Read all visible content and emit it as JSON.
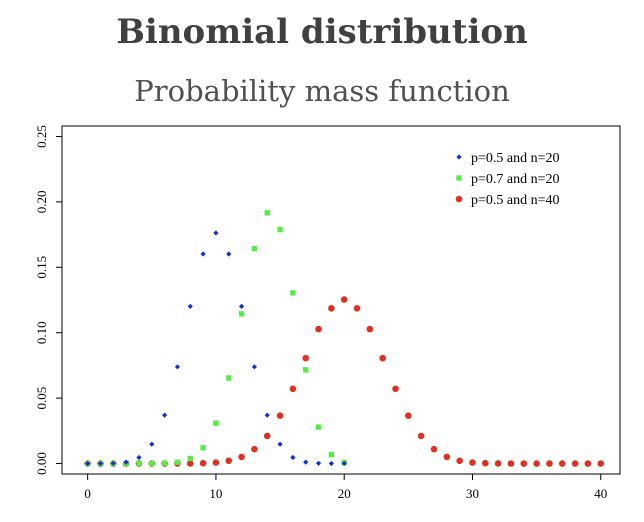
{
  "chart_data": {
    "type": "scatter",
    "title": "Binomial distribution",
    "subtitle": "Probability mass function",
    "xlabel": "",
    "ylabel": "",
    "xlim": [
      -2,
      41.5
    ],
    "ylim": [
      -0.008,
      0.258
    ],
    "x_ticks": [
      0,
      10,
      20,
      30,
      40
    ],
    "x_tick_labels": [
      "0",
      "10",
      "20",
      "30",
      "40"
    ],
    "y_ticks": [
      0,
      0.05,
      0.1,
      0.15,
      0.2,
      0.25
    ],
    "y_tick_labels": [
      "0.00",
      "0.05",
      "0.10",
      "0.15",
      "0.20",
      "0.25"
    ],
    "grid": false,
    "legend_position": "top-right",
    "series": [
      {
        "name": "p=0.5 and n=20",
        "color": "#1030d0",
        "marker": "diamond",
        "x": [
          0,
          1,
          2,
          3,
          4,
          5,
          6,
          7,
          8,
          9,
          10,
          11,
          12,
          13,
          14,
          15,
          16,
          17,
          18,
          19,
          20
        ],
        "y": [
          1e-06,
          1.9e-05,
          0.000181,
          0.001087,
          0.004621,
          0.014786,
          0.036964,
          0.073929,
          0.120134,
          0.160179,
          0.176197,
          0.160179,
          0.120134,
          0.073929,
          0.036964,
          0.014786,
          0.004621,
          0.001087,
          0.000181,
          1.9e-05,
          1e-06
        ]
      },
      {
        "name": "p=0.7 and n=20",
        "color": "#55ee44",
        "marker": "square",
        "x": [
          0,
          1,
          2,
          3,
          4,
          5,
          6,
          7,
          8,
          9,
          10,
          11,
          12,
          13,
          14,
          15,
          16,
          17,
          18,
          19,
          20
        ],
        "y": [
          0.0,
          0.0,
          0.0,
          1e-06,
          6e-06,
          3.7e-05,
          0.000218,
          0.001018,
          0.003859,
          0.012007,
          0.030817,
          0.06537,
          0.114397,
          0.164262,
          0.191639,
          0.178863,
          0.130421,
          0.071604,
          0.027846,
          0.006839,
          0.000798
        ]
      },
      {
        "name": "p=0.5 and n=40",
        "color": "#e03020",
        "marker": "circle",
        "x": [
          0,
          1,
          2,
          3,
          4,
          5,
          6,
          7,
          8,
          9,
          10,
          11,
          12,
          13,
          14,
          15,
          16,
          17,
          18,
          19,
          20,
          21,
          22,
          23,
          24,
          25,
          26,
          27,
          28,
          29,
          30,
          31,
          32,
          33,
          34,
          35,
          36,
          37,
          38,
          39,
          40
        ],
        "y": [
          0.0,
          0.0,
          0.0,
          0.0,
          0.0,
          0.0,
          0.0,
          1.7e-05,
          6.9e-05,
          0.000251,
          0.000772,
          0.0021,
          0.005071,
          0.010936,
          0.021088,
          0.036554,
          0.057115,
          0.080557,
          0.102751,
          0.118643,
          0.125371,
          0.118643,
          0.102751,
          0.080557,
          0.057115,
          0.036554,
          0.021088,
          0.010936,
          0.005071,
          0.0021,
          0.000772,
          0.000251,
          6.9e-05,
          1.7e-05,
          0.0,
          0.0,
          0.0,
          0.0,
          0.0,
          0.0,
          0.0
        ]
      }
    ]
  }
}
